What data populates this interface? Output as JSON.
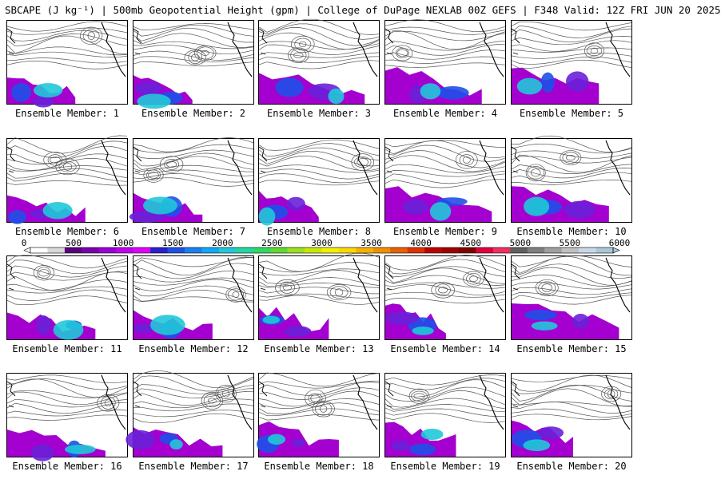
{
  "header": {
    "title": "SBCAPE (J kg⁻¹) | 500mb Geopotential Height (gpm) | College of DuPage NEXLAB 00Z GEFS | F348 Valid: 12Z FRI JUN 20 2025"
  },
  "panels": [
    {
      "label": "Ensemble Member: 1"
    },
    {
      "label": "Ensemble Member: 2"
    },
    {
      "label": "Ensemble Member: 3"
    },
    {
      "label": "Ensemble Member: 4"
    },
    {
      "label": "Ensemble Member: 5"
    },
    {
      "label": "Ensemble Member: 6"
    },
    {
      "label": "Ensemble Member: 7"
    },
    {
      "label": "Ensemble Member: 8"
    },
    {
      "label": "Ensemble Member: 9"
    },
    {
      "label": "Ensemble Member: 10"
    },
    {
      "label": "Ensemble Member: 11"
    },
    {
      "label": "Ensemble Member: 12"
    },
    {
      "label": "Ensemble Member: 13"
    },
    {
      "label": "Ensemble Member: 14"
    },
    {
      "label": "Ensemble Member: 15"
    },
    {
      "label": "Ensemble Member: 16"
    },
    {
      "label": "Ensemble Member: 17"
    },
    {
      "label": "Ensemble Member: 18"
    },
    {
      "label": "Ensemble Member: 19"
    },
    {
      "label": "Ensemble Member: 20"
    }
  ],
  "colorbar": {
    "ticks": [
      "0",
      "500",
      "1000",
      "1500",
      "2000",
      "2500",
      "3000",
      "3500",
      "4000",
      "4500",
      "5000",
      "5500",
      "6000"
    ],
    "colors": [
      "#ffffff",
      "#d9d9d9",
      "#5a0080",
      "#7a00b0",
      "#9a00d8",
      "#c000f0",
      "#e000ff",
      "#2a1fd0",
      "#1e50e8",
      "#1880f0",
      "#10a8f8",
      "#20c8d8",
      "#20d8a0",
      "#30d860",
      "#60d830",
      "#98e020",
      "#c8e800",
      "#f0f000",
      "#f8d800",
      "#f8b000",
      "#f09000",
      "#e86000",
      "#e03000",
      "#c00000",
      "#a00000",
      "#800000",
      "#e00040",
      "#f03060",
      "#606060",
      "#808080",
      "#a0a0a0",
      "#c0c0c0",
      "#c8d8e8",
      "#a8c8d8"
    ]
  }
}
